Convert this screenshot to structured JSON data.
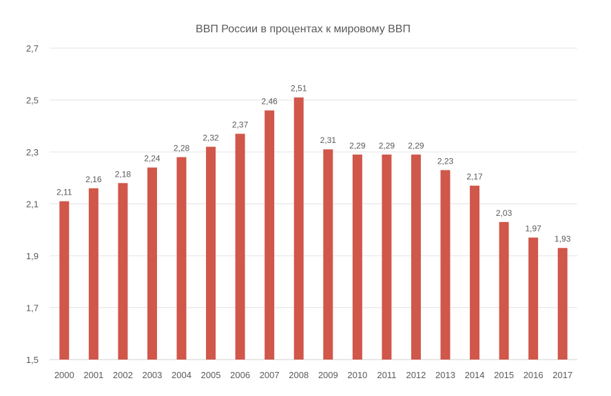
{
  "chart_data": {
    "type": "bar",
    "title": "ВВП России в процентах к мировому ВВП",
    "xlabel": "",
    "ylabel": "",
    "categories": [
      "2000",
      "2001",
      "2002",
      "2003",
      "2004",
      "2005",
      "2006",
      "2007",
      "2008",
      "2009",
      "2010",
      "2011",
      "2012",
      "2013",
      "2014",
      "2015",
      "2016",
      "2017"
    ],
    "values": [
      2.11,
      2.16,
      2.18,
      2.24,
      2.28,
      2.32,
      2.37,
      2.46,
      2.51,
      2.31,
      2.29,
      2.29,
      2.29,
      2.23,
      2.17,
      2.03,
      1.97,
      1.93
    ],
    "value_labels": [
      "2,11",
      "2,16",
      "2,18",
      "2,24",
      "2,28",
      "2,32",
      "2,37",
      "2,46",
      "2,51",
      "2,31",
      "2,29",
      "2,29",
      "2,29",
      "2,23",
      "2,17",
      "2,03",
      "1,97",
      "1,93"
    ],
    "ylim": [
      1.5,
      2.7
    ],
    "yticks": [
      1.5,
      1.7,
      1.9,
      2.1,
      2.3,
      2.5,
      2.7
    ],
    "ytick_labels": [
      "1,5",
      "1,7",
      "1,9",
      "2,1",
      "2,3",
      "2,5",
      "2,7"
    ],
    "grid": true,
    "legend": "none",
    "colors": {
      "bar": "#d0574a",
      "grid": "#e3e3e3",
      "axis_line": "#d0d0d0",
      "text": "#595959"
    }
  }
}
